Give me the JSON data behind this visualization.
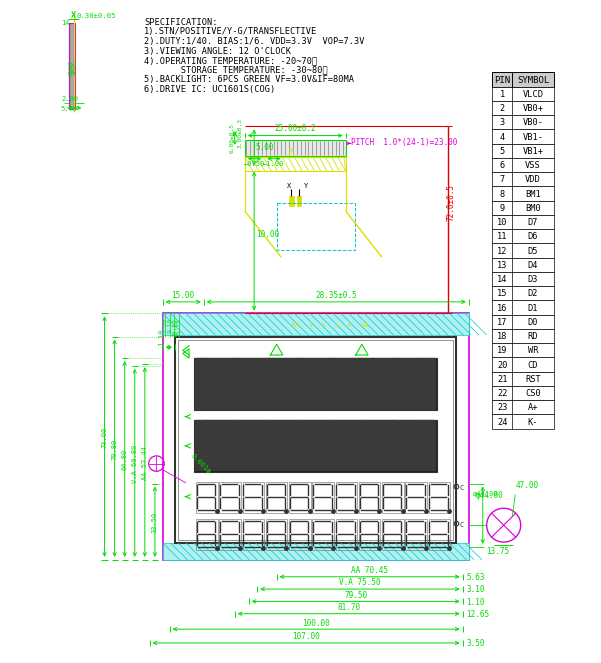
{
  "bg_color": "#ffffff",
  "spec_text": [
    "SPECIFICATION:",
    "1).STN/POSITIVE/Y-G/TRANSFLECTIVE",
    "2).DUTY:1/40. BIAS:1/6. VDD=3.3V  VOP=7.3V",
    "3).VIEWING ANGLE: 12 O'CLOCK",
    "4).OPERATING TEMPERATURE: -20~70℃",
    "       STORAGE TEMPERATURE: -30~80℃",
    "5).BACKLIGHT: 6PCS GREEN VF=3.0V&IF=80MA",
    "6).DRIVE IC: UC1601S(COG)"
  ],
  "pin_symbols": [
    [
      1,
      "VLCD"
    ],
    [
      2,
      "VB0+"
    ],
    [
      3,
      "VB0-"
    ],
    [
      4,
      "VB1-"
    ],
    [
      5,
      "VB1+"
    ],
    [
      6,
      "VSS"
    ],
    [
      7,
      "VDD"
    ],
    [
      8,
      "BM1"
    ],
    [
      9,
      "BM0"
    ],
    [
      10,
      "D7"
    ],
    [
      11,
      "D6"
    ],
    [
      12,
      "D5"
    ],
    [
      13,
      "D4"
    ],
    [
      14,
      "D3"
    ],
    [
      15,
      "D2"
    ],
    [
      16,
      "D1"
    ],
    [
      17,
      "D0"
    ],
    [
      18,
      "RD"
    ],
    [
      19,
      "WR"
    ],
    [
      20,
      "CD"
    ],
    [
      21,
      "RST"
    ],
    [
      22,
      "CS0"
    ],
    [
      23,
      "A+"
    ],
    [
      24,
      "K-"
    ]
  ],
  "green": "#00dd00",
  "yellow": "#dddd00",
  "magenta": "#dd00dd",
  "red": "#dd0000",
  "cyan": "#00cccc",
  "black": "#000000",
  "light_gray": "#cccccc",
  "dark_gray": "#333333",
  "mid_gray": "#666666"
}
